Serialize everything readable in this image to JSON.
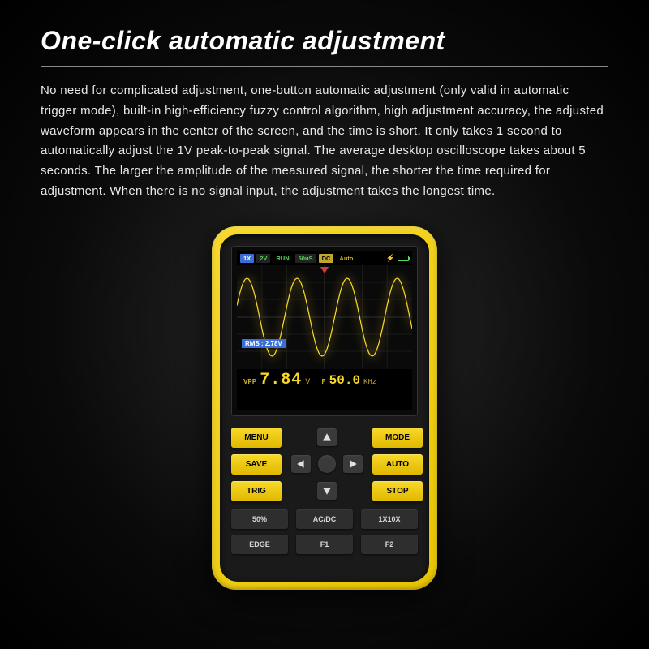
{
  "title": "One-click automatic adjustment",
  "description": "No need for complicated adjustment, one-button automatic adjustment (only valid in automatic trigger mode), built-in high-efficiency fuzzy control algorithm, high adjustment accuracy, the adjusted waveform appears in the center of the screen, and the time is short. It only takes 1 second to automatically adjust the 1V peak-to-peak signal. The average desktop oscilloscope takes about 5 seconds. The larger the amplitude of the measured signal, the shorter the time required for adjustment. When there is no signal input, the adjustment takes the longest time.",
  "device": {
    "body_color": "#f0d020",
    "inner_color": "#1a1a1a",
    "status": {
      "probe": "1X",
      "volt_div": "2V",
      "run": "RUN",
      "time_div": "50uS",
      "coupling": "DC",
      "trigger_mode": "Auto"
    },
    "waveform": {
      "type": "sine",
      "color": "#f8d929",
      "cycles": 3.5,
      "amplitude_ratio": 0.75,
      "grid_color": "#2a2a2a"
    },
    "rms_label": "RMS : 2.78V",
    "measurements": {
      "vpp_label": "VPP",
      "vpp_value": "7.84",
      "vpp_unit": "V",
      "freq_label": "F",
      "freq_value": "50.0",
      "freq_unit": "KHz"
    },
    "buttons_left": [
      "MENU",
      "SAVE",
      "TRIG"
    ],
    "buttons_right": [
      "MODE",
      "AUTO",
      "STOP"
    ],
    "buttons_bottom": [
      "50%",
      "AC/DC",
      "1X10X",
      "EDGE",
      "F1",
      "F2"
    ]
  }
}
